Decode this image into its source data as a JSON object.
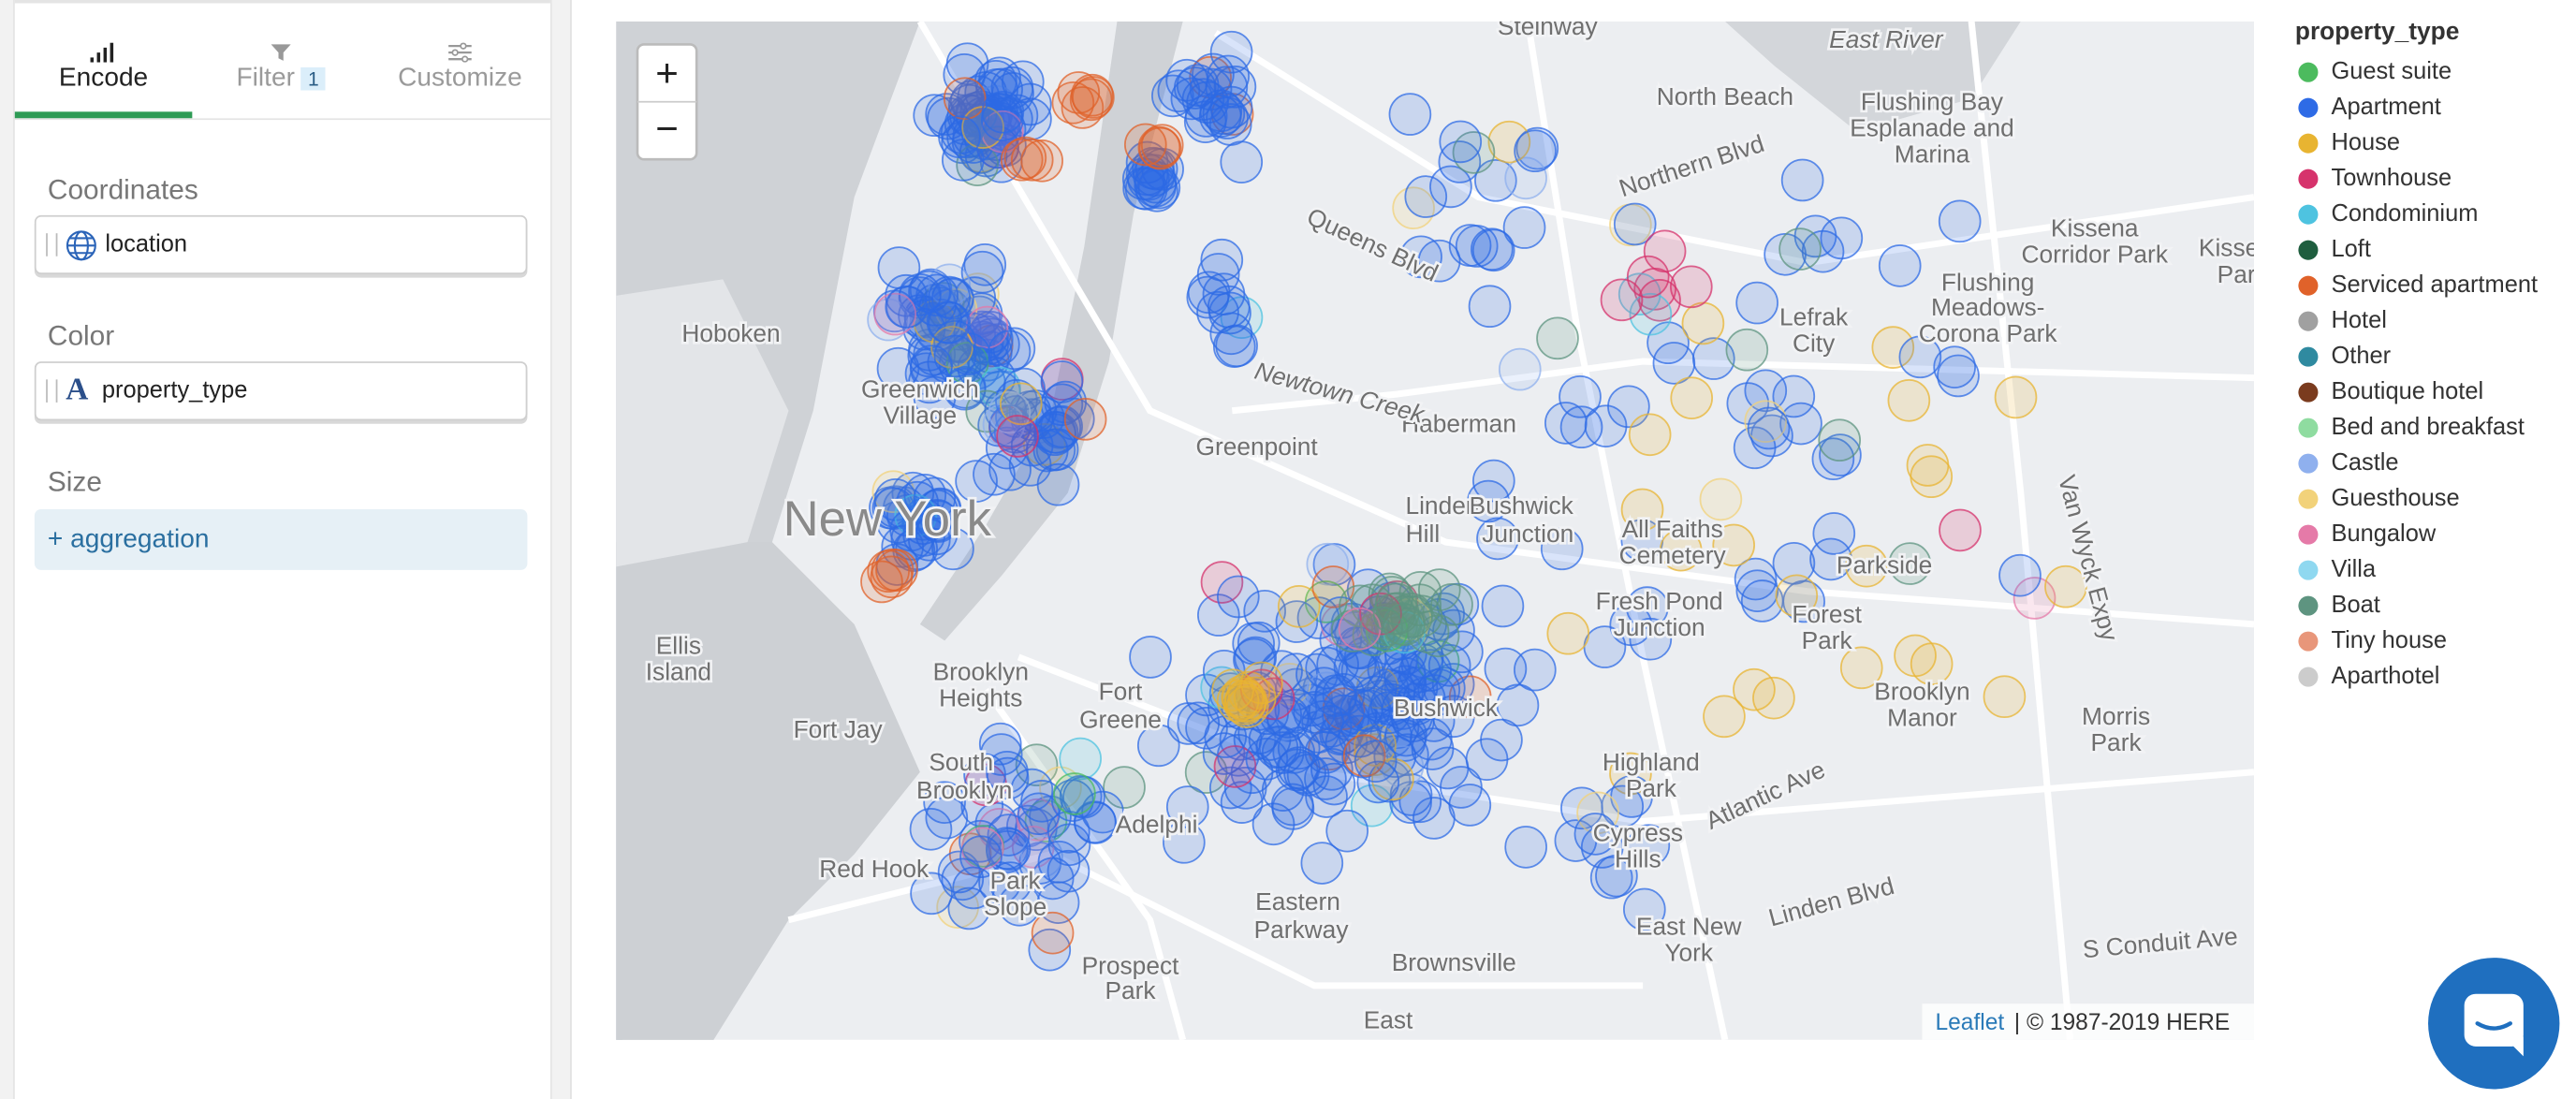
{
  "sidebar": {
    "tabs": [
      {
        "label": "Encode"
      },
      {
        "label": "Filter",
        "badge": "1"
      },
      {
        "label": "Customize"
      }
    ],
    "sections": [
      {
        "title": "Coordinates",
        "field": "location"
      },
      {
        "title": "Color",
        "type_icon": "A",
        "field": "property_type"
      },
      {
        "title": "Size",
        "field": "+ aggregation"
      }
    ]
  },
  "map": {
    "zoom_in": "+",
    "zoom_out": "−",
    "attribution_link": "Leaflet",
    "attribution_text": "| © 1987-2019 HERE",
    "labels": [
      "Steinway",
      "East River",
      "North Beach",
      "Flushing Bay",
      "Esplanade and",
      "Marina",
      "Hoboken",
      "Greenwich",
      "Village",
      "Greenpoint",
      "Haberman",
      "Newtown Creek",
      "Linden",
      "Hill",
      "Bushwick",
      "Junction",
      "New York",
      "Lefrak",
      "City",
      "Flushing",
      "Meadows-",
      "Corona Park",
      "Kissena",
      "Corridor Park",
      "Kissena",
      "Park",
      "Northern Blvd",
      "Queens Blvd",
      "All Faiths",
      "Cemetery",
      "Fresh Pond",
      "Junction",
      "Forest",
      "Park",
      "Parkside",
      "Van Wyck Expy",
      "Ellis",
      "Island",
      "Fort Jay",
      "Brooklyn",
      "Heights",
      "Fort",
      "Greene",
      "Bushwick",
      "South",
      "Brooklyn",
      "Adelphi",
      "Brooklyn",
      "Manor",
      "Morris",
      "Park",
      "Highland",
      "Park",
      "Cypress",
      "Hills",
      "Atlantic Ave",
      "Red Hook",
      "Park",
      "Slope",
      "Eastern",
      "Parkway",
      "East New",
      "York",
      "Linden Blvd",
      "S Conduit Ave",
      "Brownsville",
      "Prospect",
      "Park",
      "East",
      "East River",
      "Hoboken",
      "Heights"
    ]
  },
  "legend": {
    "title": "property_type",
    "items": [
      {
        "label": "Guest suite",
        "color": "#4cbb5e"
      },
      {
        "label": "Apartment",
        "color": "#2e6be6"
      },
      {
        "label": "House",
        "color": "#e8b431"
      },
      {
        "label": "Townhouse",
        "color": "#d6336c"
      },
      {
        "label": "Condominium",
        "color": "#4ec3e0"
      },
      {
        "label": "Loft",
        "color": "#1f5e3f"
      },
      {
        "label": "Serviced apartment",
        "color": "#e0622a"
      },
      {
        "label": "Hotel",
        "color": "#a0a0a0"
      },
      {
        "label": "Other",
        "color": "#2f8aa0"
      },
      {
        "label": "Boutique hotel",
        "color": "#7a3b1e"
      },
      {
        "label": "Bed and breakfast",
        "color": "#8fdca0"
      },
      {
        "label": "Castle",
        "color": "#8fb0ee"
      },
      {
        "label": "Guesthouse",
        "color": "#f2d27a"
      },
      {
        "label": "Bungalow",
        "color": "#e57aa8"
      },
      {
        "label": "Villa",
        "color": "#8fd8f0"
      },
      {
        "label": "Boat",
        "color": "#5e9480"
      },
      {
        "label": "Tiny house",
        "color": "#e8967a"
      },
      {
        "label": "Aparthotel",
        "color": "#cccccc"
      }
    ]
  }
}
